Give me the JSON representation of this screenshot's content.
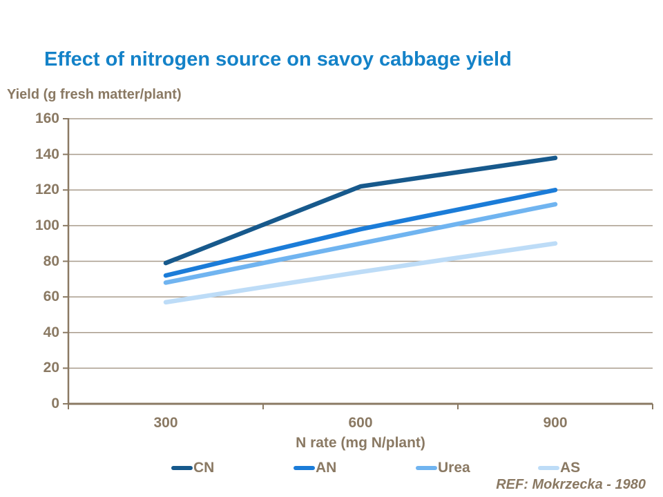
{
  "title": "Effect of nitrogen source on savoy cabbage yield",
  "ref_note": "REF: Mokrzecka - 1980",
  "colors": {
    "title": "#1482C8",
    "text": "#8A7963",
    "grid": "#A89B8B",
    "axis": "#8A7963"
  },
  "chart_data": {
    "type": "line",
    "title": "Effect of nitrogen source on savoy cabbage yield",
    "xlabel": "N rate (mg N/plant)",
    "ylabel": "Yield (g fresh matter/plant)",
    "categories": [
      "300",
      "600",
      "900"
    ],
    "series": [
      {
        "name": "CN",
        "color": "#17598C",
        "values": [
          79,
          122,
          138
        ]
      },
      {
        "name": "AN",
        "color": "#1B7CD8",
        "values": [
          72,
          98,
          120
        ]
      },
      {
        "name": "Urea",
        "color": "#70B4F0",
        "values": [
          68,
          90,
          112
        ]
      },
      {
        "name": "AS",
        "color": "#BDDCF7",
        "values": [
          57,
          74,
          90
        ]
      }
    ],
    "ylim": [
      0,
      160
    ],
    "ytick_step": 20,
    "yticks": [
      0,
      20,
      40,
      60,
      80,
      100,
      120,
      140,
      160
    ],
    "grid": true,
    "legend_position": "bottom",
    "annotation": "REF: Mokrzecka - 1980"
  }
}
